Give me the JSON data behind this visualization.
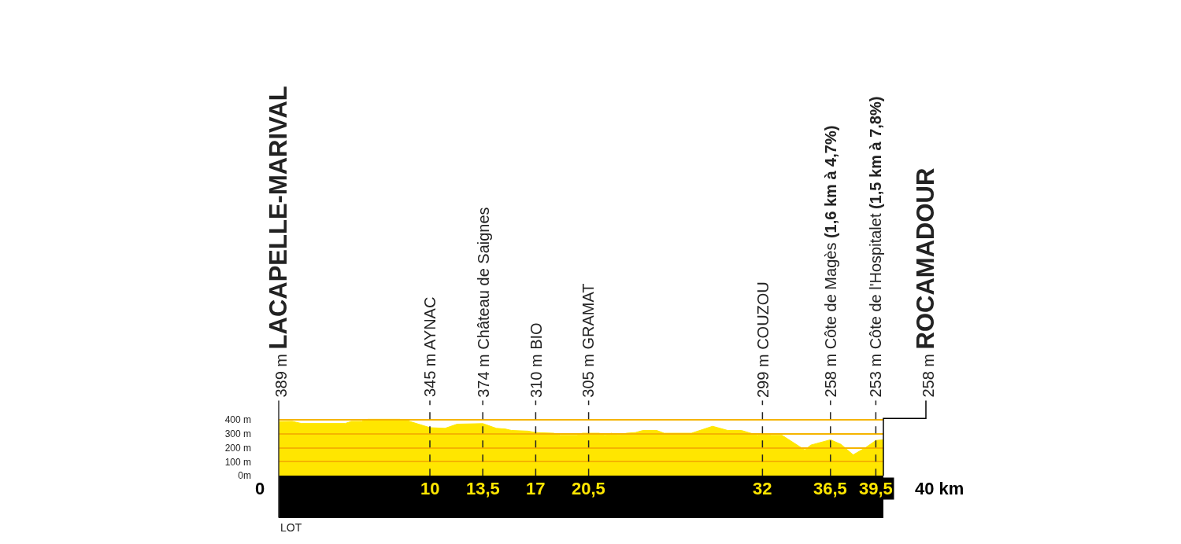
{
  "chart_data": {
    "type": "area",
    "x": [
      0,
      0.9,
      1.5,
      4.4,
      4.8,
      5.5,
      5.9,
      8.0,
      8.5,
      10,
      11.0,
      11.8,
      13.5,
      14.4,
      15.0,
      15.4,
      16.5,
      17,
      18.2,
      18.6,
      19.7,
      20.1,
      20.5,
      21.2,
      21.6,
      22.0,
      22.5,
      23.0,
      23.6,
      24.1,
      25.0,
      25.5,
      27.3,
      28.7,
      29.7,
      30.6,
      31.7,
      32,
      32.6,
      33.3,
      34.8,
      35.2,
      36.5,
      37.2,
      38.0,
      38.8,
      39.5,
      40
    ],
    "values": [
      389,
      390,
      375,
      375,
      390,
      390,
      405,
      405,
      395,
      345,
      340,
      370,
      374,
      340,
      335,
      325,
      320,
      310,
      305,
      290,
      290,
      305,
      305,
      305,
      290,
      305,
      290,
      305,
      310,
      325,
      325,
      305,
      305,
      355,
      325,
      325,
      290,
      299,
      290,
      290,
      185,
      220,
      258,
      225,
      150,
      200,
      253,
      258
    ],
    "color": "#ffe600",
    "xlim": [
      0,
      40
    ],
    "xticks": [
      10,
      {
        "value": 13.5,
        "label": "13,5"
      },
      17,
      {
        "value": 20.5,
        "label": "20,5"
      },
      32,
      {
        "value": 36.5,
        "label": "36,5"
      },
      {
        "value": 39.5,
        "label": "39,5"
      }
    ],
    "ylim": [
      0,
      420
    ],
    "yticks": [
      {
        "value": 0,
        "label": "0m"
      },
      {
        "value": 100,
        "label": "100 m"
      },
      {
        "value": 200,
        "label": "200 m"
      },
      {
        "value": 300,
        "label": "300 m"
      },
      {
        "value": 400,
        "label": "400 m"
      }
    ],
    "grid": "y",
    "ref_lines": [
      {
        "axis": "x",
        "value": 0,
        "label": "389 m LACAPELLE-MARIVAL",
        "line_style": "solid",
        "color": "#333333"
      },
      {
        "axis": "x",
        "value": 10,
        "label": "345 m AYNAC",
        "line_style": "dashed",
        "color": "#222222"
      },
      {
        "axis": "x",
        "value": 13.5,
        "label": "374 m Château de Saignes",
        "line_style": "dashed",
        "color": "#222222"
      },
      {
        "axis": "x",
        "value": 17,
        "label": "310 m BIO",
        "line_style": "dashed",
        "color": "#222222"
      },
      {
        "axis": "x",
        "value": 20.5,
        "label": "305 m GRAMAT",
        "line_style": "dashed",
        "color": "#222222"
      },
      {
        "axis": "x",
        "value": 32,
        "label": "299 m COUZOU",
        "line_style": "dashed",
        "color": "#222222"
      },
      {
        "axis": "x",
        "value": 36.5,
        "label": "258 m Côte de Magès (1,6 km à 4,7%)",
        "line_style": "dashed",
        "color": "#222222"
      },
      {
        "axis": "x",
        "value": 39.5,
        "label": "253 m Côte de l'Hospitalet (1,5 km à 7,8%)",
        "line_style": "dashed",
        "color": "#222222"
      },
      {
        "axis": "x",
        "value": 40,
        "label": "258 m ROCAMADOUR",
        "line_style": "solid",
        "color": "#000000"
      }
    ],
    "annotations": [
      "0",
      "40 km",
      "LOT"
    ]
  }
}
